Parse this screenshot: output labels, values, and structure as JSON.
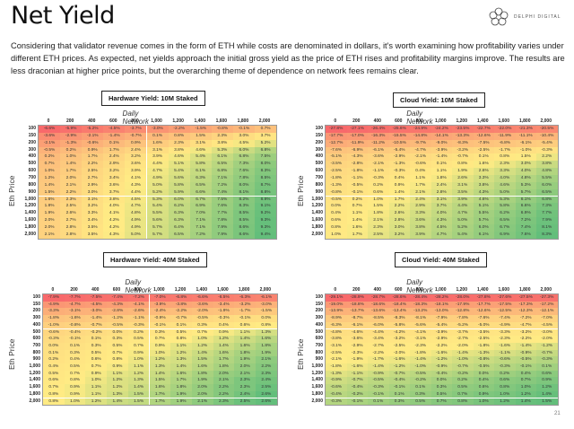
{
  "page": {
    "title": "Net Yield",
    "brand": "DELPHI DIGITAL",
    "intro": "Considering that validator revenue comes in the form of ETH while costs are denominated in dollars, it's worth examining how profitability varies under different ETH prices. As expected, net yields approach the initial gross yield as the price of ETH rises and profitability margins improve. The results are less draconian at higher price points, but the overarching theme of dependence on network fees remains clear.",
    "page_number": "21",
    "colors": {
      "low": "#f8696b",
      "mid": "#ffeb84",
      "high": "#63be7b"
    }
  },
  "chart_data": [
    {
      "type": "heatmap",
      "title": "Hardware Yield: 10M Staked",
      "xlabel": "Daily Network Fees",
      "ylabel": "Eth Price",
      "x": [
        "0",
        "200",
        "400",
        "600",
        "800",
        "1,000",
        "1,200",
        "1,400",
        "1,600",
        "1,800",
        "2,000"
      ],
      "y": [
        "100",
        "150",
        "200",
        "300",
        "400",
        "500",
        "600",
        "700",
        "800",
        "900",
        "1,000",
        "1,200",
        "1,400",
        "1,600",
        "1,800",
        "2,000"
      ],
      "unit": "%",
      "values": [
        [
          -6.6,
          -5.9,
          -5.2,
          -4.5,
          -3.7,
          -3.0,
          -2.2,
          -1.5,
          -0.8,
          -0.1,
          0.7
        ],
        [
          -3.6,
          -2.9,
          -2.1,
          -1.4,
          -0.7,
          0.1,
          0.8,
          1.5,
          2.3,
          3.0,
          3.7
        ],
        [
          -2.1,
          -1.3,
          -0.6,
          0.1,
          0.9,
          1.6,
          2.3,
          3.1,
          3.8,
          4.5,
          5.2
        ],
        [
          -0.5,
          0.2,
          0.9,
          1.7,
          2.4,
          3.1,
          3.8,
          4.6,
          5.3,
          6.0,
          6.8
        ],
        [
          0.2,
          1.0,
          1.7,
          2.4,
          3.2,
          3.9,
          4.6,
          5.4,
          6.1,
          6.8,
          7.5
        ],
        [
          0.7,
          1.4,
          2.2,
          2.9,
          3.6,
          4.4,
          5.1,
          5.8,
          6.5,
          7.3,
          8.0
        ],
        [
          1.0,
          1.7,
          2.5,
          3.2,
          3.9,
          4.7,
          5.4,
          6.1,
          6.8,
          7.6,
          8.3
        ],
        [
          1.2,
          2.0,
          2.7,
          3.4,
          4.1,
          4.9,
          5.6,
          6.3,
          7.1,
          7.8,
          8.5
        ],
        [
          1.4,
          2.1,
          2.9,
          3.6,
          4.3,
          5.0,
          5.8,
          6.5,
          7.2,
          8.0,
          8.7
        ],
        [
          1.5,
          2.2,
          3.0,
          3.7,
          4.4,
          5.2,
          5.9,
          6.6,
          7.4,
          8.1,
          8.8
        ],
        [
          1.6,
          2.3,
          3.1,
          3.8,
          4.5,
          5.3,
          6.0,
          6.7,
          7.5,
          8.2,
          8.9
        ],
        [
          1.8,
          2.5,
          3.2,
          4.0,
          4.7,
          5.4,
          6.2,
          6.9,
          7.6,
          8.3,
          9.1
        ],
        [
          1.9,
          2.6,
          3.3,
          4.1,
          4.8,
          5.5,
          6.3,
          7.0,
          7.7,
          8.5,
          9.2
        ],
        [
          2.0,
          2.7,
          3.4,
          4.2,
          4.9,
          5.6,
          6.3,
          7.1,
          7.8,
          8.5,
          9.3
        ],
        [
          2.0,
          2.8,
          3.5,
          4.2,
          4.9,
          5.7,
          6.4,
          7.1,
          7.9,
          8.6,
          9.3
        ],
        [
          2.1,
          2.8,
          3.5,
          4.3,
          5.0,
          5.7,
          6.5,
          7.2,
          7.9,
          8.6,
          9.4
        ]
      ]
    },
    {
      "type": "heatmap",
      "title": "Cloud Yield: 10M Staked",
      "xlabel": "Daily Network Fees",
      "ylabel": "Eth Price",
      "x": [
        "0",
        "200",
        "400",
        "600",
        "800",
        "1,000",
        "1,200",
        "1,400",
        "1,600",
        "1,800",
        "2,000"
      ],
      "y": [
        "100",
        "150",
        "200",
        "300",
        "400",
        "500",
        "600",
        "700",
        "800",
        "900",
        "1,000",
        "1,200",
        "1,400",
        "1,600",
        "1,800",
        "2,000"
      ],
      "unit": "%",
      "values": [
        [
          -27.8,
          -27.1,
          -26.4,
          -25.6,
          -24.9,
          -24.2,
          -23.5,
          -22.7,
          -22.0,
          -21.3,
          -20.5
        ],
        [
          -17.7,
          -17.0,
          -16.3,
          -15.5,
          -14.8,
          -14.1,
          -13.3,
          -12.6,
          -11.9,
          -11.1,
          -10.4
        ],
        [
          -12.7,
          -11.9,
          -11.2,
          -10.5,
          -9.7,
          -9.0,
          -8.3,
          -7.5,
          -6.8,
          -6.1,
          -5.4
        ],
        [
          -7.6,
          -6.9,
          -6.1,
          -5.4,
          -4.7,
          -3.9,
          -3.2,
          -2.5,
          -1.7,
          -1.0,
          -0.3
        ],
        [
          -5.1,
          -4.3,
          -3.6,
          -2.9,
          -2.1,
          -1.4,
          -0.7,
          0.1,
          0.8,
          1.5,
          2.2
        ],
        [
          -3.5,
          -2.8,
          -2.1,
          -1.3,
          -0.6,
          0.1,
          0.8,
          1.6,
          2.3,
          3.0,
          3.8
        ],
        [
          -2.5,
          -1.8,
          -1.1,
          -0.3,
          0.4,
          1.1,
          1.9,
          2.6,
          3.3,
          4.0,
          4.8
        ],
        [
          -1.8,
          -1.1,
          -0.3,
          0.4,
          1.1,
          1.8,
          2.6,
          3.3,
          4.0,
          4.8,
          5.5
        ],
        [
          -1.3,
          -0.5,
          0.2,
          0.9,
          1.7,
          2.4,
          3.1,
          3.8,
          4.6,
          5.3,
          6.0
        ],
        [
          -0.8,
          -0.1,
          0.6,
          1.4,
          2.1,
          2.8,
          3.5,
          4.3,
          5.0,
          5.7,
          6.5
        ],
        [
          -0.5,
          0.2,
          1.0,
          1.7,
          2.4,
          3.1,
          3.9,
          4.6,
          5.3,
          6.1,
          6.8
        ],
        [
          0.0,
          0.7,
          1.5,
          2.2,
          2.9,
          3.7,
          4.4,
          5.1,
          5.8,
          6.6,
          7.3
        ],
        [
          0.4,
          1.1,
          1.8,
          2.6,
          3.3,
          4.0,
          4.7,
          5.5,
          6.2,
          6.9,
          7.7
        ],
        [
          0.6,
          1.4,
          2.1,
          2.8,
          3.6,
          4.3,
          5.0,
          5.7,
          6.5,
          7.2,
          7.9
        ],
        [
          0.8,
          1.6,
          2.3,
          3.0,
          3.8,
          4.5,
          5.2,
          6.0,
          6.7,
          7.4,
          8.1
        ],
        [
          1.0,
          1.7,
          2.5,
          3.2,
          3.9,
          4.7,
          5.4,
          6.1,
          6.9,
          7.6,
          8.3
        ]
      ]
    },
    {
      "type": "heatmap",
      "title": "Hardware Yield: 40M Staked",
      "xlabel": "Daily Network Fees",
      "ylabel": "Eth Price",
      "x": [
        "0",
        "200",
        "400",
        "600",
        "800",
        "1,000",
        "1,200",
        "1,400",
        "1,600",
        "1,800",
        "2,000"
      ],
      "y": [
        "100",
        "150",
        "200",
        "300",
        "400",
        "500",
        "600",
        "700",
        "800",
        "900",
        "1,000",
        "1,200",
        "1,400",
        "1,600",
        "1,800",
        "2,000"
      ],
      "unit": "%",
      "values": [
        [
          -7.9,
          -7.7,
          -7.5,
          -7.4,
          -7.2,
          -7.0,
          -6.8,
          -6.6,
          -6.5,
          -6.3,
          -6.1
        ],
        [
          -4.9,
          -4.7,
          -4.5,
          -4.3,
          -4.1,
          -3.9,
          -3.8,
          -3.6,
          -3.4,
          -3.2,
          -3.0
        ],
        [
          -3.3,
          -3.1,
          -3.0,
          -2.8,
          -2.6,
          -2.4,
          -2.2,
          -2.0,
          -1.9,
          -1.7,
          -1.5
        ],
        [
          -1.8,
          -1.6,
          -1.4,
          -1.2,
          -1.1,
          -0.9,
          -0.7,
          -0.5,
          -0.3,
          -0.1,
          0.0
        ],
        [
          -1.0,
          -0.8,
          -0.7,
          -0.5,
          -0.3,
          -0.1,
          0.1,
          0.3,
          0.4,
          0.6,
          0.8
        ],
        [
          -0.6,
          -0.4,
          -0.2,
          0.0,
          0.2,
          0.3,
          0.5,
          0.7,
          0.9,
          1.1,
          1.3
        ],
        [
          -0.3,
          -0.1,
          0.1,
          0.3,
          0.5,
          0.7,
          0.8,
          1.0,
          1.2,
          1.4,
          1.6
        ],
        [
          0.0,
          0.1,
          0.3,
          0.5,
          0.7,
          0.9,
          1.1,
          1.2,
          1.4,
          1.6,
          1.8
        ],
        [
          0.1,
          0.3,
          0.5,
          0.7,
          0.9,
          1.0,
          1.2,
          1.4,
          1.6,
          1.8,
          1.9
        ],
        [
          0.2,
          0.4,
          0.6,
          0.8,
          1.0,
          1.2,
          1.3,
          1.5,
          1.7,
          1.9,
          2.1
        ],
        [
          0.4,
          0.5,
          0.7,
          0.9,
          1.1,
          1.3,
          1.4,
          1.6,
          1.8,
          2.0,
          2.2
        ],
        [
          0.5,
          0.7,
          0.9,
          1.1,
          1.2,
          1.4,
          1.6,
          1.8,
          2.0,
          2.1,
          2.3
        ],
        [
          0.6,
          0.8,
          1.0,
          1.2,
          1.3,
          1.5,
          1.7,
          1.9,
          2.1,
          2.3,
          2.4
        ],
        [
          0.7,
          0.9,
          1.1,
          1.2,
          1.4,
          1.6,
          1.8,
          2.0,
          2.2,
          2.3,
          2.5
        ],
        [
          0.8,
          0.9,
          1.1,
          1.3,
          1.5,
          1.7,
          1.9,
          2.0,
          2.2,
          2.4,
          2.6
        ],
        [
          0.8,
          1.0,
          1.2,
          1.4,
          1.5,
          1.7,
          1.9,
          2.1,
          2.3,
          2.5,
          2.6
        ]
      ]
    },
    {
      "type": "heatmap",
      "title": "Cloud Yield: 40M Staked",
      "xlabel": "Daily Network Fees",
      "ylabel": "Eth Price",
      "x": [
        "0",
        "200",
        "400",
        "600",
        "800",
        "1,000",
        "1,200",
        "1,400",
        "1,600",
        "1,800",
        "2,000"
      ],
      "y": [
        "100",
        "150",
        "200",
        "300",
        "400",
        "500",
        "600",
        "700",
        "800",
        "900",
        "1,000",
        "1,200",
        "1,400",
        "1,600",
        "1,800",
        "2,000"
      ],
      "unit": "%",
      "values": [
        [
          -29.1,
          -28.9,
          -28.7,
          -28.6,
          -28.4,
          -28.2,
          -28.0,
          -27.8,
          -27.6,
          -27.5,
          -27.3
        ],
        [
          -19.0,
          -18.8,
          -18.6,
          -18.4,
          -18.3,
          -18.1,
          -17.9,
          -17.7,
          -17.5,
          -17.3,
          -17.2
        ],
        [
          -13.9,
          -13.7,
          -13.6,
          -13.4,
          -13.2,
          -13.0,
          -12.8,
          -12.6,
          -12.5,
          -12.3,
          -12.1
        ],
        [
          -8.9,
          -8.7,
          -8.5,
          -8.3,
          -8.1,
          -7.9,
          -7.8,
          -7.6,
          -7.4,
          -7.2,
          -7.0
        ],
        [
          -6.3,
          -6.1,
          -6.0,
          -5.8,
          -5.6,
          -5.4,
          -5.2,
          -5.0,
          -4.9,
          -4.7,
          -4.5
        ],
        [
          -4.8,
          -4.6,
          -4.4,
          -4.2,
          -4.1,
          -3.9,
          -3.7,
          -3.5,
          -3.3,
          -3.2,
          -3.0
        ],
        [
          -3.8,
          -3.6,
          -3.4,
          -3.2,
          -3.1,
          -2.9,
          -2.7,
          -2.5,
          -2.3,
          -2.2,
          -2.0
        ],
        [
          -3.1,
          -2.9,
          -2.7,
          -2.5,
          -2.3,
          -2.2,
          -2.0,
          -1.8,
          -1.6,
          -1.4,
          -1.2
        ],
        [
          -2.5,
          -2.3,
          -2.2,
          -2.0,
          -1.8,
          -1.6,
          -1.4,
          -1.3,
          -1.1,
          -0.9,
          -0.7
        ],
        [
          -2.1,
          -1.9,
          -1.7,
          -1.6,
          -1.4,
          -1.2,
          -1.0,
          -0.8,
          -0.6,
          -0.5,
          -0.3
        ],
        [
          -1.8,
          -1.6,
          -1.4,
          -1.2,
          -1.0,
          -0.9,
          -0.7,
          -0.5,
          -0.3,
          -0.1,
          0.1
        ],
        [
          -1.3,
          -1.1,
          -0.9,
          -0.7,
          -0.5,
          -0.4,
          -0.2,
          0.0,
          0.2,
          0.4,
          0.6
        ],
        [
          -0.9,
          -0.7,
          -0.5,
          -0.4,
          -0.2,
          0.0,
          0.2,
          0.4,
          0.6,
          0.7,
          0.9
        ],
        [
          -0.6,
          -0.4,
          -0.3,
          -0.1,
          0.1,
          0.3,
          0.5,
          0.6,
          0.8,
          1.0,
          1.2
        ],
        [
          -0.4,
          -0.2,
          -0.1,
          0.1,
          0.3,
          0.5,
          0.7,
          0.9,
          1.0,
          1.2,
          1.4
        ],
        [
          -0.3,
          -0.1,
          0.1,
          0.3,
          0.5,
          0.7,
          0.8,
          1.0,
          1.2,
          1.4,
          1.5
        ]
      ]
    }
  ]
}
